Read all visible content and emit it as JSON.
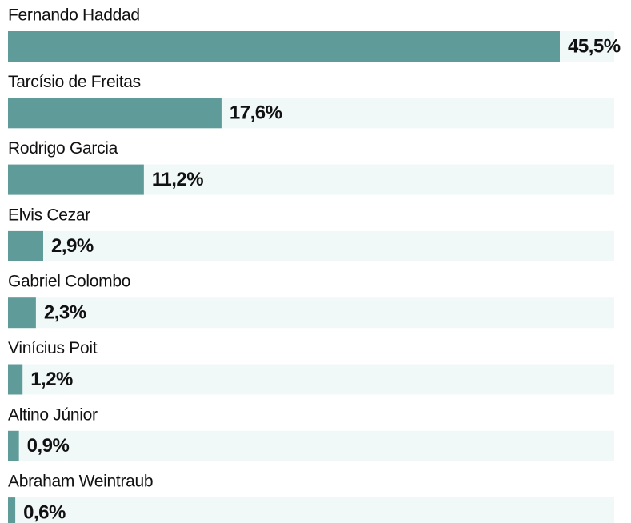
{
  "chart_data": {
    "type": "bar",
    "orientation": "horizontal",
    "categories": [
      "Fernando Haddad",
      "Tarcísio de Freitas",
      "Rodrigo Garcia",
      "Elvis Cezar",
      "Gabriel Colombo",
      "Vinícius Poit",
      "Altino Júnior",
      "Abraham Weintraub"
    ],
    "values": [
      45.5,
      17.6,
      11.2,
      2.9,
      2.3,
      1.2,
      0.9,
      0.6
    ],
    "value_labels": [
      "45,5%",
      "17,6%",
      "11,2%",
      "2,9%",
      "2,3%",
      "1,2%",
      "0,9%",
      "0,6%"
    ],
    "color": "#5f9b98",
    "track_color": "#f1f8f8"
  }
}
